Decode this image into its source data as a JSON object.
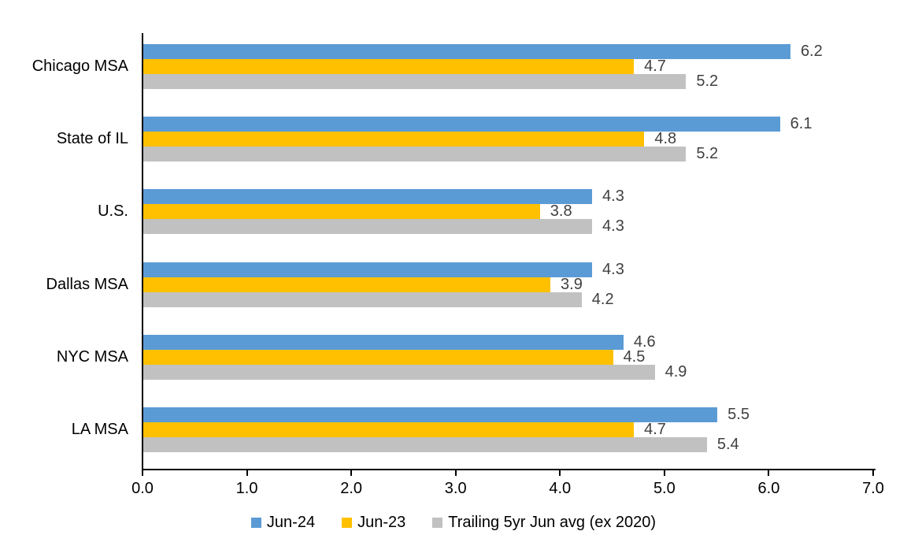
{
  "chart_data": {
    "type": "bar",
    "orientation": "horizontal",
    "title": "",
    "xlabel": "",
    "ylabel": "",
    "xlim": [
      0,
      7
    ],
    "xtick_labels": [
      "0.0",
      "1.0",
      "2.0",
      "3.0",
      "4.0",
      "5.0",
      "6.0",
      "7.0"
    ],
    "grid": false,
    "legend_position": "bottom-center",
    "categories": [
      "Chicago MSA",
      "State of IL",
      "U.S.",
      "Dallas MSA",
      "NYC MSA",
      "LA MSA"
    ],
    "series": [
      {
        "name": "Jun-24",
        "color": "#5B9BD5",
        "values": [
          6.2,
          6.1,
          4.3,
          4.3,
          4.6,
          5.5
        ]
      },
      {
        "name": "Jun-23",
        "color": "#FFC000",
        "values": [
          4.7,
          4.8,
          3.8,
          3.9,
          4.5,
          4.7
        ]
      },
      {
        "name": "Trailing 5yr Jun avg (ex 2020)",
        "color": "#C1C1C1",
        "values": [
          5.2,
          5.2,
          4.3,
          4.2,
          4.9,
          5.4
        ]
      }
    ],
    "value_labels_shown": true,
    "value_label_color": "#404040",
    "axis_color": "#000000",
    "text_color": "#000000",
    "background_color": "#FFFFFF"
  }
}
